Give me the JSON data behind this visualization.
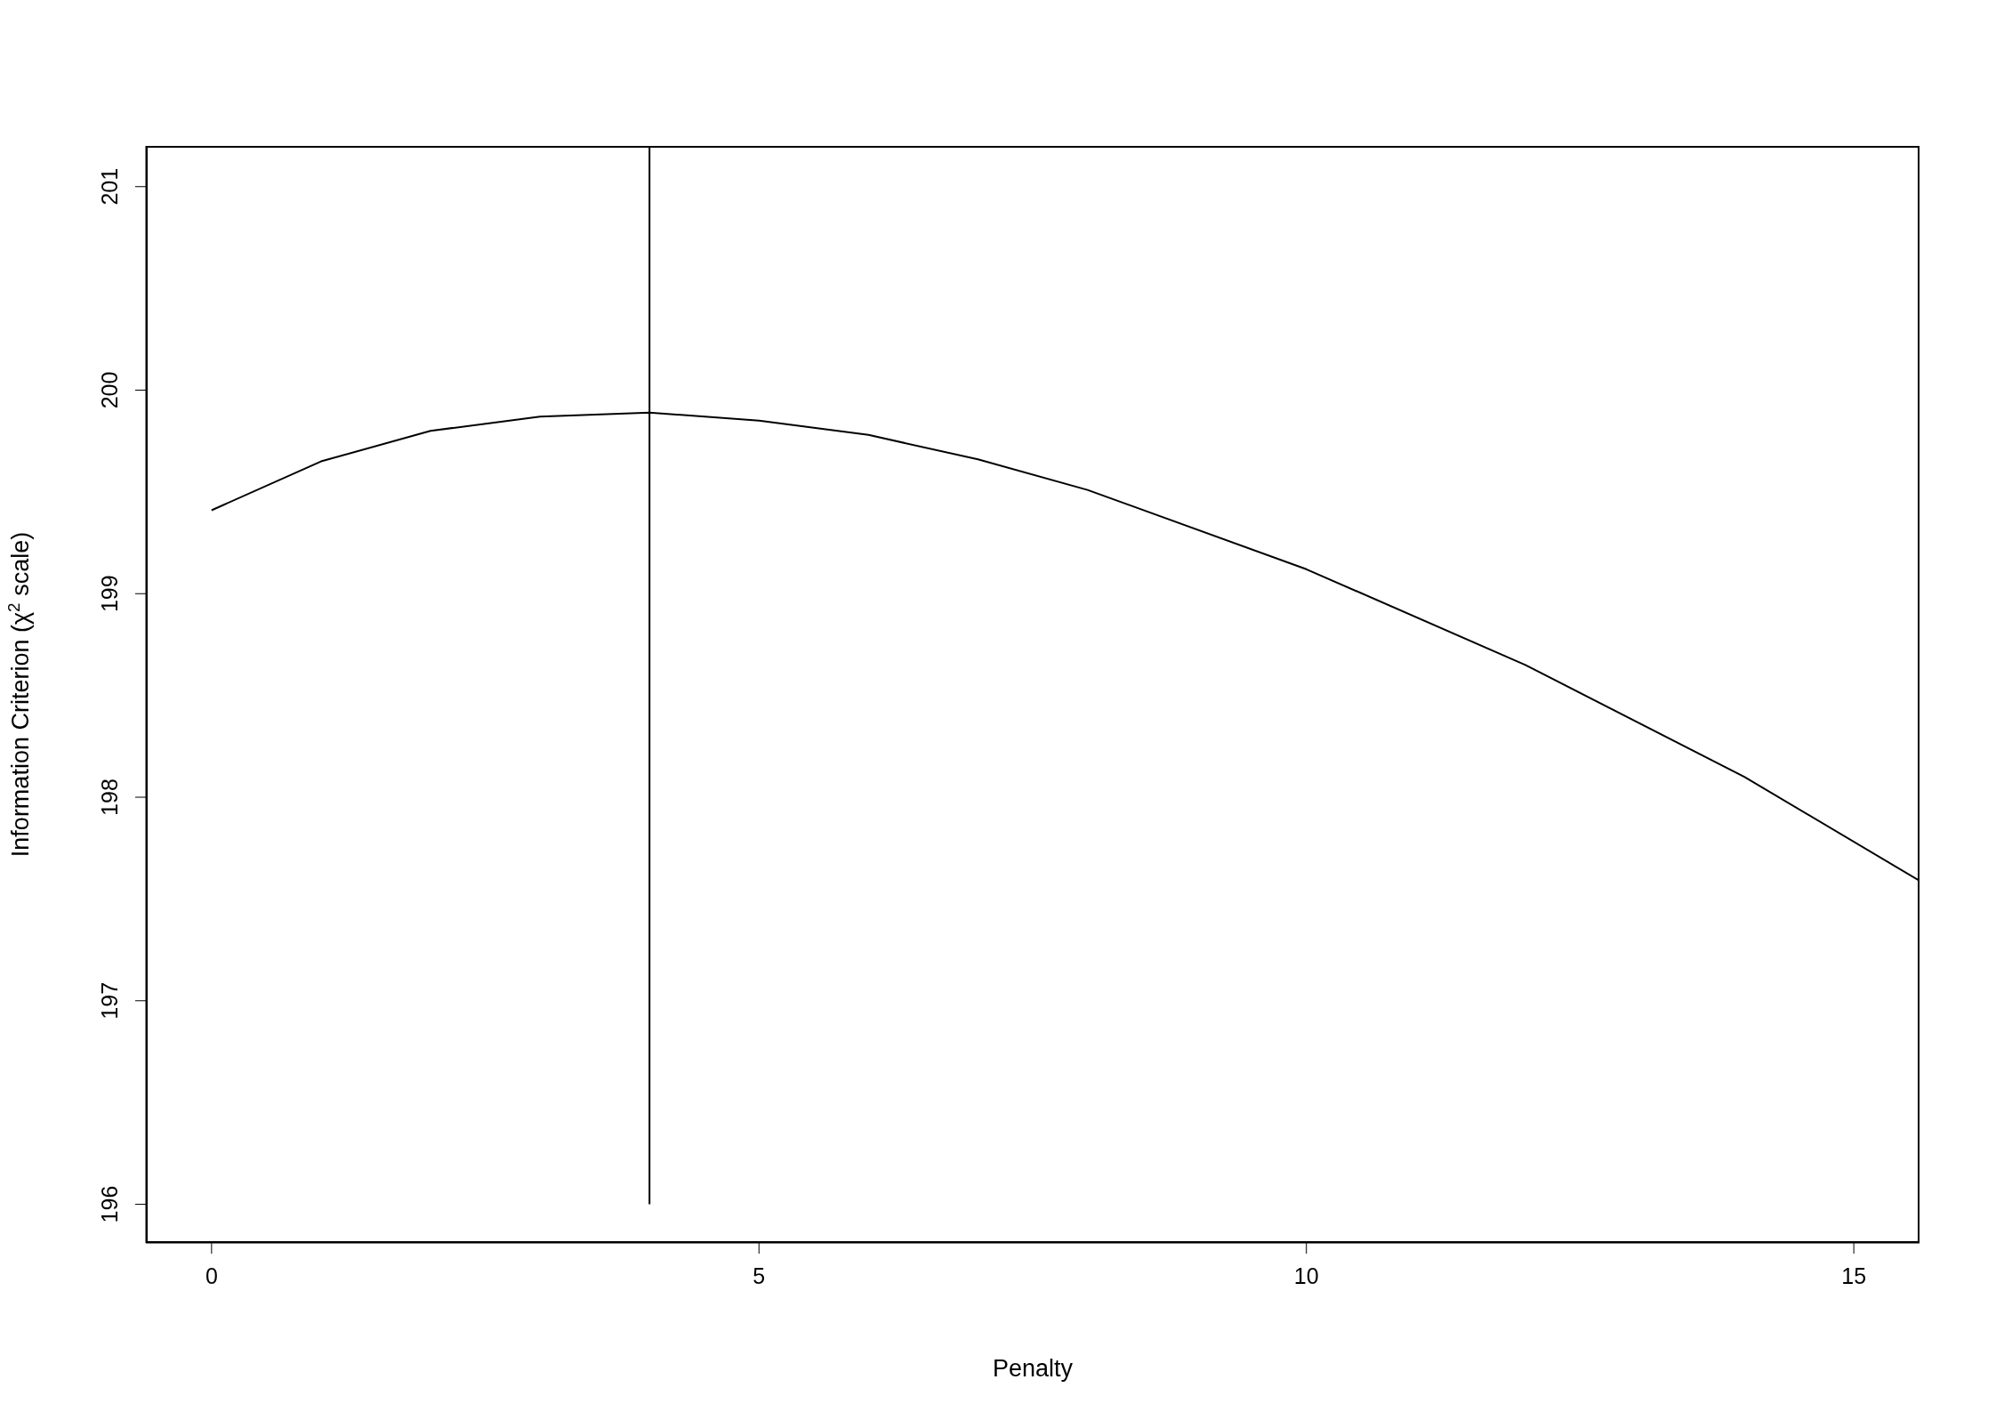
{
  "chart_data": {
    "type": "line",
    "xlabel": "Penalty",
    "ylabel": "Information Criterion (χ$^{2}$ scale)",
    "xlim": [
      -0.6,
      15.6
    ],
    "ylim": [
      195.81,
      201.2
    ],
    "xticks": [
      0,
      5,
      10,
      15
    ],
    "yticks": [
      196,
      197,
      198,
      199,
      200,
      201
    ],
    "marker": "none",
    "line_style": "solid",
    "series": [
      {
        "color": "#000000",
        "x": [
          0,
          1,
          2,
          3,
          4,
          5,
          6,
          7,
          8,
          10,
          12,
          14,
          15.6
        ],
        "values": [
          199.41,
          199.65,
          199.8,
          199.87,
          199.89,
          199.85,
          199.78,
          199.66,
          199.51,
          199.12,
          198.65,
          198.1,
          197.59
        ]
      },
      {
        "color": "#000000",
        "x": [
          4,
          4
        ],
        "values": [
          196,
          201.2
        ]
      }
    ]
  }
}
